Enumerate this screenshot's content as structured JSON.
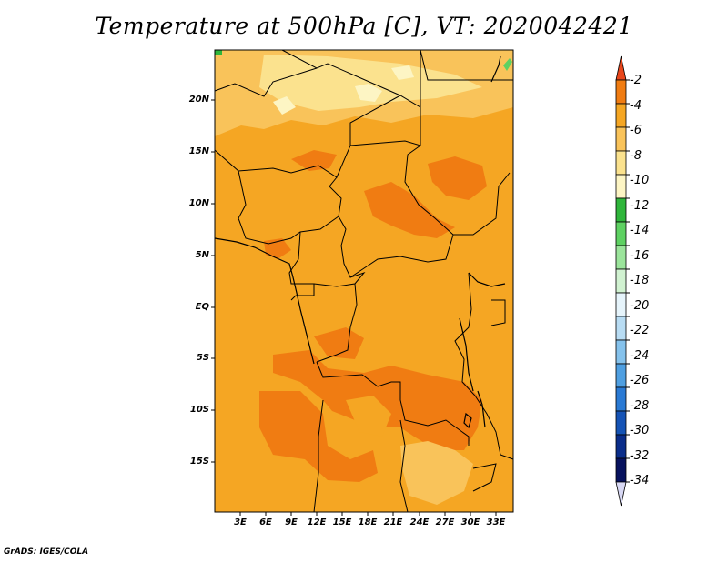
{
  "title": "Temperature at 500hPa [C], VT: 2020042421",
  "lat_labels": [
    "20N",
    "15N",
    "10N",
    "5N",
    "EQ",
    "5S",
    "10S",
    "15S"
  ],
  "lon_labels": [
    "3E",
    "6E",
    "9E",
    "12E",
    "15E",
    "18E",
    "21E",
    "24E",
    "27E",
    "30E",
    "33E"
  ],
  "colorbar": {
    "labels": [
      "-2",
      "-4",
      "-6",
      "-8",
      "-10",
      "-12",
      "-14",
      "-16",
      "-18",
      "-20",
      "-22",
      "-24",
      "-26",
      "-28",
      "-30",
      "-32",
      "-34"
    ],
    "colors": [
      "#e8461b",
      "#f07c12",
      "#f5a623",
      "#f9c35a",
      "#fbe28e",
      "#fdf5c4",
      "#2fb53b",
      "#5ed162",
      "#9be49b",
      "#d1f2d1",
      "#e6f4fb",
      "#b8dcf3",
      "#85c2ec",
      "#4f9fe1",
      "#2a7ad4",
      "#1553b5",
      "#0a2d8a",
      "#07125e",
      "#d8d8f4"
    ]
  },
  "credit": "GrADS: IGES/COLA",
  "colors": {
    "warm_base": "#f5a623",
    "warm_hot": "#f07c12",
    "warm_light": "#f9c35a",
    "warm_pale": "#fbe28e"
  }
}
